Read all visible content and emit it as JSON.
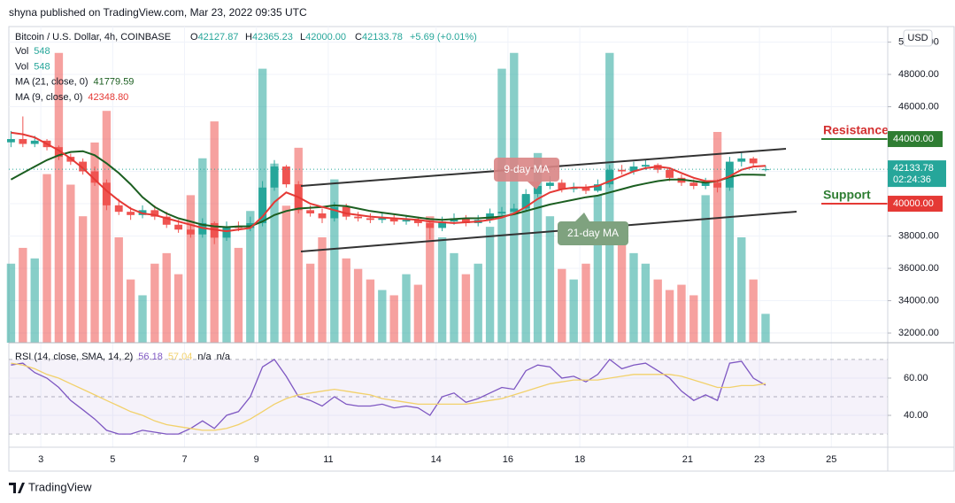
{
  "publisher": "shyna published on TradingView.com, Mar 23, 2022 09:35 UTC",
  "footer": "TradingView",
  "chart_data": {
    "type": "candlestick",
    "symbol": "Bitcoin / U.S. Dollar, 4h, COINBASE",
    "header": [
      {
        "key": "O",
        "value": "42127.87"
      },
      {
        "key": "H",
        "value": "42365.23"
      },
      {
        "key": "L",
        "value": "42000.00"
      },
      {
        "key": "C",
        "value": "42133.78"
      }
    ],
    "change": "+5.69 (+0.01%)",
    "currency": "USD",
    "legend": [
      {
        "label": "Vol",
        "value": "548",
        "color": "#26a69a"
      },
      {
        "label": "Vol",
        "value": "548",
        "color": "#26a69a"
      },
      {
        "label": "MA (21, close, 0)",
        "value": "41779.59",
        "color": "#1b5e20"
      },
      {
        "label": "MA (9, close, 0)",
        "value": "42348.80",
        "color": "#e53935"
      }
    ],
    "up_color": "#26a69a",
    "down_color": "#ef5350",
    "x": [
      2.17,
      2.5,
      2.83,
      3.17,
      3.5,
      3.83,
      4.17,
      4.5,
      4.83,
      5.17,
      5.5,
      5.83,
      6.17,
      6.5,
      6.83,
      7.17,
      7.5,
      7.83,
      8.17,
      8.5,
      8.83,
      9.17,
      9.5,
      9.83,
      10.17,
      10.5,
      10.83,
      11.17,
      11.5,
      11.83,
      12.17,
      12.5,
      12.83,
      13.17,
      13.5,
      13.83,
      14.17,
      14.5,
      14.83,
      15.17,
      15.5,
      15.83,
      16.17,
      16.5,
      16.83,
      17.17,
      17.5,
      17.83,
      18.17,
      18.5,
      18.83,
      19.17,
      19.5,
      19.83,
      20.17,
      20.5,
      20.83,
      21.17,
      21.5,
      21.83,
      22.17,
      22.5,
      22.83,
      23.17
    ],
    "open": [
      43800,
      44000,
      43700,
      43900,
      43500,
      42900,
      42600,
      42000,
      41300,
      39900,
      39500,
      39300,
      39600,
      39200,
      38700,
      38400,
      38100,
      38800,
      37900,
      38600,
      38500,
      38800,
      41000,
      42300,
      41200,
      39600,
      39400,
      39100,
      39800,
      39200,
      39100,
      39000,
      39100,
      38900,
      39000,
      38800,
      38500,
      38900,
      39100,
      38800,
      39000,
      39400,
      39500,
      39700,
      40600,
      41100,
      41300,
      40900,
      41000,
      40800,
      41200,
      42100,
      42000,
      42300,
      42400,
      42100,
      41600,
      41300,
      41100,
      41300,
      41000,
      42600,
      42800,
      42127.87
    ],
    "high": [
      44500,
      45400,
      44200,
      44000,
      43600,
      43100,
      42800,
      42300,
      41500,
      40300,
      39800,
      39900,
      39900,
      39500,
      39000,
      38700,
      39100,
      38900,
      38900,
      38900,
      39200,
      41400,
      42700,
      42400,
      41400,
      39900,
      39700,
      40100,
      40000,
      39500,
      39400,
      39400,
      39300,
      39300,
      39200,
      38900,
      39200,
      39400,
      39300,
      39300,
      39700,
      39800,
      40000,
      40900,
      41400,
      41700,
      41500,
      41300,
      41200,
      41500,
      42400,
      42400,
      42600,
      42700,
      42500,
      42200,
      41800,
      41500,
      41600,
      41500,
      42900,
      43200,
      42900,
      42365.23
    ],
    "low": [
      43500,
      43500,
      43500,
      43300,
      42700,
      42400,
      41800,
      41100,
      39600,
      39300,
      39000,
      39100,
      39000,
      38500,
      38200,
      37900,
      37900,
      37500,
      37700,
      38300,
      38300,
      38600,
      40800,
      41000,
      39400,
      39200,
      38800,
      38900,
      39000,
      38900,
      38800,
      38800,
      38700,
      38700,
      38600,
      37800,
      38300,
      38700,
      38600,
      38600,
      38800,
      39200,
      39300,
      39500,
      40400,
      40900,
      40700,
      40700,
      40600,
      40700,
      41000,
      41800,
      41800,
      42100,
      41900,
      41400,
      41100,
      40900,
      40900,
      40700,
      40800,
      42300,
      42300,
      42000
    ],
    "close": [
      44000,
      43700,
      43900,
      43500,
      42900,
      42600,
      42000,
      41300,
      39900,
      39500,
      39300,
      39600,
      39200,
      38700,
      38400,
      38100,
      38800,
      37900,
      38600,
      38500,
      38800,
      41000,
      42300,
      41200,
      39600,
      39400,
      39100,
      39800,
      39200,
      39100,
      39000,
      39100,
      38900,
      39000,
      38800,
      38500,
      38900,
      39100,
      38800,
      39000,
      39400,
      39500,
      39700,
      40600,
      41100,
      41300,
      40900,
      41000,
      40800,
      41200,
      42100,
      42000,
      42300,
      42400,
      42100,
      41600,
      41300,
      41100,
      41300,
      41000,
      42600,
      42800,
      42500,
      42133.78
    ],
    "series": [
      {
        "name": "MA (21, close, 0)",
        "color": "#1b5e20",
        "values": [
          41500,
          41900,
          42300,
          42700,
          43000,
          43200,
          43250,
          43000,
          42500,
          41900,
          41200,
          40400,
          39800,
          39400,
          39100,
          38900,
          38700,
          38600,
          38550,
          38600,
          38600,
          38900,
          39300,
          39550,
          39700,
          39750,
          39800,
          39900,
          39850,
          39700,
          39550,
          39450,
          39350,
          39250,
          39150,
          39050,
          39000,
          39050,
          39100,
          39100,
          39150,
          39200,
          39350,
          39550,
          39750,
          39950,
          40100,
          40250,
          40400,
          40500,
          40700,
          40900,
          41100,
          41250,
          41400,
          41500,
          41500,
          41400,
          41300,
          41400,
          41650,
          41800,
          41800,
          41779.59
        ]
      },
      {
        "name": "MA (9, close, 0)",
        "color": "#e53935",
        "values": [
          44400,
          44300,
          44100,
          43700,
          43300,
          42800,
          42200,
          41500,
          40800,
          40200,
          39700,
          39400,
          39300,
          39100,
          38900,
          38700,
          38500,
          38400,
          38300,
          38400,
          38500,
          39200,
          40100,
          40700,
          40400,
          40000,
          39800,
          39600,
          39400,
          39300,
          39200,
          39150,
          39100,
          39050,
          39000,
          38900,
          38850,
          38800,
          38850,
          38900,
          39000,
          39150,
          39400,
          39800,
          40300,
          40700,
          40900,
          41000,
          41000,
          41100,
          41400,
          41700,
          42000,
          42200,
          42300,
          42200,
          41900,
          41600,
          41400,
          41400,
          41700,
          42100,
          42300,
          42348.8
        ]
      }
    ],
    "volume": {
      "ylim": [
        0,
        6000
      ],
      "values": [
        1500,
        1800,
        1600,
        3200,
        5500,
        3000,
        2400,
        3800,
        4400,
        2000,
        1200,
        900,
        1500,
        1700,
        1300,
        2800,
        3500,
        4200,
        2200,
        1800,
        2500,
        5200,
        3400,
        2600,
        3700,
        1500,
        2000,
        3100,
        1600,
        1400,
        1200,
        1000,
        900,
        1300,
        1100,
        2400,
        2000,
        1700,
        1300,
        1500,
        2200,
        5200,
        5500,
        2800,
        3600,
        2400,
        1400,
        1200,
        1500,
        2800,
        5500,
        2000,
        1700,
        1500,
        1200,
        1000,
        1100,
        900,
        2800,
        4000,
        3300,
        2000,
        1200,
        548
      ]
    },
    "xlim": [
      2.11,
      26.57
    ],
    "xticks": [
      3,
      5,
      7,
      9,
      11,
      14,
      16,
      18,
      21,
      23,
      25
    ],
    "ylim": [
      31400,
      50960
    ],
    "yticks": [
      {
        "value": 50000,
        "label": "50000.00"
      },
      {
        "value": 48000,
        "label": "48000.00"
      },
      {
        "value": 46000,
        "label": "46000.00"
      },
      {
        "value": 44000,
        "label": "44000.00"
      },
      {
        "value": 42000,
        "label": "42000.00"
      },
      {
        "value": 40000,
        "label": "40000.00"
      },
      {
        "value": 38000,
        "label": "38000.00"
      },
      {
        "value": 36000,
        "label": "36000.00"
      },
      {
        "value": 34000,
        "label": "34000.00"
      },
      {
        "value": 32000,
        "label": "32000.00"
      }
    ],
    "grid": true,
    "countdown": "02:24:36",
    "levels": [
      {
        "name": "Resistance",
        "value": 44000,
        "value_label": "44000.00",
        "color": "#2e7d32",
        "text_color": "#d32f2f"
      },
      {
        "name": "Support",
        "value": 40000,
        "value_label": "40000.00",
        "color": "#e53935",
        "text_color": "#2e7d32"
      }
    ],
    "annotations": [
      "9-day MA",
      "21-day MA"
    ],
    "rsi": {
      "label": "RSI (14, close, SMA, 14, 2)",
      "value_labels": [
        "56.18",
        "57.04",
        "n/a",
        "n/a"
      ],
      "ylim": [
        22.9,
        79
      ],
      "yticks": [
        {
          "value": 40,
          "label": "40.00"
        },
        {
          "value": 60,
          "label": "60.00"
        }
      ],
      "bands": [
        30,
        50,
        70
      ],
      "series": [
        {
          "name": "RSI",
          "color": "#7e57c2",
          "values": [
            67,
            68,
            63,
            60,
            55,
            48,
            43,
            38,
            32,
            30,
            30,
            32,
            31,
            30,
            30,
            33,
            37,
            33,
            40,
            42,
            50,
            66,
            70,
            61,
            50,
            48,
            45,
            50,
            46,
            45,
            45,
            46,
            44,
            45,
            44,
            40,
            50,
            52,
            47,
            49,
            52,
            55,
            54,
            64,
            67,
            66,
            60,
            61,
            58,
            62,
            70,
            65,
            67,
            68,
            64,
            60,
            53,
            48,
            51,
            48,
            68,
            69,
            60,
            56.18
          ]
        },
        {
          "name": "SMA",
          "color": "#f2d16b",
          "values": [
            68,
            67,
            65,
            62,
            60,
            57,
            54,
            51,
            48,
            45,
            42,
            40,
            37,
            35,
            34,
            33,
            32,
            32,
            33,
            35,
            38,
            42,
            46,
            49,
            51,
            52,
            53,
            54,
            53,
            52,
            51,
            49,
            48,
            47,
            46,
            46,
            46,
            46,
            46,
            47,
            48,
            49,
            51,
            53,
            55,
            57,
            58,
            59,
            59,
            59,
            60,
            61,
            62,
            62,
            62,
            62,
            61,
            59,
            57,
            55,
            55,
            56,
            56,
            57.04
          ]
        }
      ]
    }
  }
}
